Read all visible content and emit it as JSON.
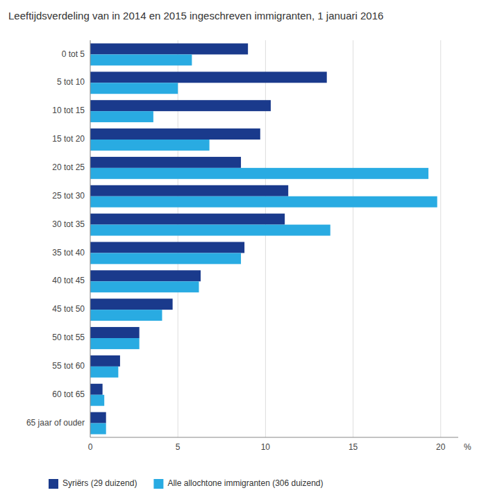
{
  "chart_data": {
    "type": "bar",
    "orientation": "horizontal",
    "title": "Leeftijdsverdeling van in 2014 en 2015 ingeschreven immigranten, 1 januari 2016",
    "categories": [
      "0 tot 5",
      "5 tot 10",
      "10 tot 15",
      "15 tot 20",
      "20 tot 25",
      "25 tot 30",
      "30 tot 35",
      "35 tot 40",
      "40 tot 45",
      "45 tot 50",
      "50 tot 55",
      "55 tot 60",
      "60 tot 65",
      "65 jaar of ouder"
    ],
    "series": [
      {
        "name": "Syriërs (29 duizend)",
        "color": "#1a3a8c",
        "values": [
          9.0,
          13.5,
          10.3,
          9.7,
          8.6,
          11.3,
          11.1,
          8.8,
          6.3,
          4.7,
          2.8,
          1.7,
          0.7,
          0.9
        ]
      },
      {
        "name": "Alle allochtone immigranten (306 duizend)",
        "color": "#29abe2",
        "values": [
          5.8,
          5.0,
          3.6,
          6.8,
          19.3,
          19.8,
          13.7,
          8.6,
          6.2,
          4.1,
          2.8,
          1.6,
          0.8,
          0.9
        ]
      }
    ],
    "xlabel": "%",
    "xlim": [
      0,
      21
    ],
    "xticks": [
      0,
      5,
      10,
      15,
      20
    ],
    "grid": true,
    "legend": "bottom"
  }
}
